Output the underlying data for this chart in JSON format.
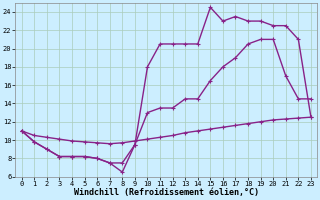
{
  "xlabel": "Windchill (Refroidissement éolien,°C)",
  "bg_color": "#cceeff",
  "grid_color": "#aaccbb",
  "line_color": "#882288",
  "xlim_min": -0.5,
  "xlim_max": 23.5,
  "ylim_min": 6,
  "ylim_max": 25,
  "yticks": [
    6,
    8,
    10,
    12,
    14,
    16,
    18,
    20,
    22,
    24
  ],
  "xticks": [
    0,
    1,
    2,
    3,
    4,
    5,
    6,
    7,
    8,
    9,
    10,
    11,
    12,
    13,
    14,
    15,
    16,
    17,
    18,
    19,
    20,
    21,
    22,
    23
  ],
  "line1_x": [
    0,
    1,
    2,
    3,
    4,
    5,
    6,
    7,
    8,
    9,
    10,
    11,
    12,
    13,
    14,
    15,
    16,
    17,
    18,
    19,
    20,
    21,
    22,
    23
  ],
  "line1_y": [
    11,
    10.5,
    10.3,
    10.1,
    9.9,
    9.8,
    9.7,
    9.6,
    9.7,
    9.9,
    10.1,
    10.3,
    10.5,
    10.8,
    11.0,
    11.2,
    11.4,
    11.6,
    11.8,
    12.0,
    12.2,
    12.3,
    12.4,
    12.5
  ],
  "line2_x": [
    0,
    1,
    2,
    3,
    4,
    5,
    6,
    7,
    8,
    9,
    10,
    11,
    12,
    13,
    14,
    15,
    16,
    17,
    18,
    19,
    20,
    21,
    22,
    23
  ],
  "line2_y": [
    11,
    9.8,
    9.0,
    8.2,
    8.2,
    8.2,
    8.0,
    7.5,
    7.5,
    9.5,
    13.0,
    13.5,
    13.5,
    14.5,
    14.5,
    16.5,
    18.0,
    19.0,
    20.5,
    21.0,
    21.0,
    17.0,
    14.5,
    14.5
  ],
  "line3_x": [
    0,
    1,
    2,
    3,
    4,
    5,
    6,
    7,
    8,
    9,
    10,
    11,
    12,
    13,
    14,
    15,
    16,
    17,
    18,
    19,
    20,
    21,
    22,
    23
  ],
  "line3_y": [
    11,
    9.8,
    9.0,
    8.2,
    8.2,
    8.2,
    8.0,
    7.5,
    6.5,
    9.5,
    18.0,
    20.5,
    20.5,
    20.5,
    20.5,
    24.5,
    23.0,
    23.5,
    23.0,
    23.0,
    22.5,
    22.5,
    21.0,
    12.5
  ],
  "marker_size": 3,
  "line_width": 1.0,
  "tick_fontsize": 5,
  "xlabel_fontsize": 6
}
